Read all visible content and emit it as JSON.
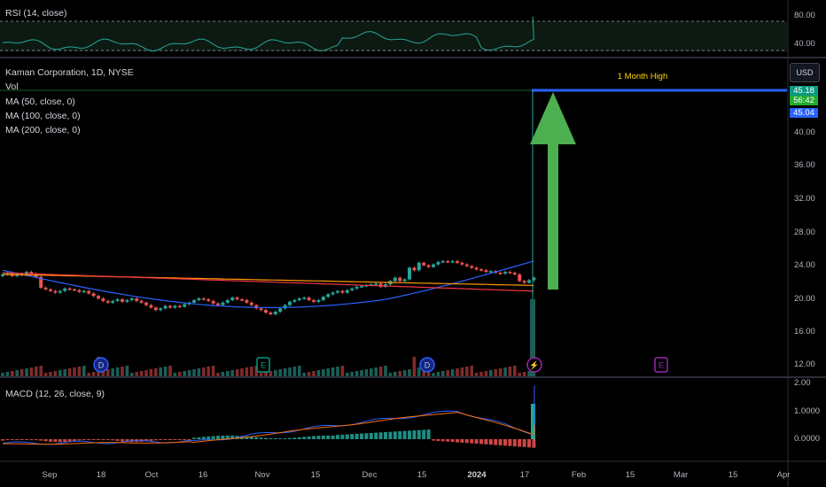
{
  "panes": {
    "rsi": {
      "label": "RSI (14, close)",
      "levels": [
        "80.00",
        "40.00"
      ]
    },
    "price": {
      "title": "Kaman Corporation, 1D, NYSE",
      "indicators": [
        "Vol",
        "MA (50, close, 0)",
        "MA (100, close, 0)",
        "MA (200, close, 0)"
      ],
      "currency": "USD",
      "y_ticks": [
        "40.00",
        "36.00",
        "32.00",
        "28.00",
        "24.00",
        "20.00",
        "16.00",
        "12.00"
      ],
      "price_tags": [
        {
          "text": "45.18",
          "color": "#089981"
        },
        {
          "text": "56:42",
          "color": "#089981"
        },
        {
          "text": "45.04",
          "color": "#2962ff"
        }
      ],
      "annotation": "1 Month High"
    },
    "macd": {
      "label": "MACD (12, 26, close, 9)",
      "y_ticks": [
        "2.00",
        "1.0000",
        "0.0000"
      ]
    }
  },
  "x_axis": {
    "labels": [
      {
        "text": "Sep",
        "bold": false
      },
      {
        "text": "18",
        "bold": false
      },
      {
        "text": "Oct",
        "bold": false
      },
      {
        "text": "16",
        "bold": false
      },
      {
        "text": "Nov",
        "bold": false
      },
      {
        "text": "15",
        "bold": false
      },
      {
        "text": "Dec",
        "bold": false
      },
      {
        "text": "15",
        "bold": false
      },
      {
        "text": "2024",
        "bold": true
      },
      {
        "text": "17",
        "bold": false
      },
      {
        "text": "Feb",
        "bold": false
      },
      {
        "text": "15",
        "bold": false
      },
      {
        "text": "Mar",
        "bold": false
      },
      {
        "text": "15",
        "bold": false
      },
      {
        "text": "Apr",
        "bold": false
      }
    ]
  },
  "events": [
    {
      "symbol": "D",
      "type": "dividend",
      "color": "#2962ff"
    },
    {
      "symbol": "E",
      "type": "earnings",
      "color": "#089981"
    },
    {
      "symbol": "D",
      "type": "dividend",
      "color": "#2962ff"
    },
    {
      "symbol": "⚡",
      "type": "news",
      "color": "#9c27b0"
    },
    {
      "symbol": "E",
      "type": "earnings",
      "color": "#9c27b0"
    }
  ],
  "colors": {
    "up": "#26a69a",
    "down": "#ef5350",
    "arrow": "#4caf50",
    "high_line": "#2962ff",
    "ma50": "#2962ff",
    "ma100": "#ff9800",
    "ma200": "#f23645"
  },
  "chart_data": {
    "type": "candlestick",
    "title": "Kaman Corporation, 1D, NYSE",
    "x_range": [
      "2023-08-28",
      "2024-04-01"
    ],
    "price_ylim": [
      11,
      46
    ],
    "price_close": [
      23.0,
      23.2,
      22.8,
      23.1,
      22.9,
      23.3,
      23.1,
      22.7,
      21.4,
      21.2,
      21.0,
      20.8,
      21.0,
      21.3,
      21.2,
      21.1,
      20.9,
      21.0,
      20.7,
      20.4,
      20.1,
      19.8,
      19.6,
      19.8,
      20.0,
      19.7,
      19.9,
      20.1,
      19.8,
      19.6,
      19.3,
      19.0,
      18.7,
      18.9,
      19.2,
      19.0,
      19.2,
      19.1,
      19.4,
      19.6,
      19.9,
      20.1,
      20.0,
      19.8,
      19.5,
      19.3,
      19.6,
      19.9,
      20.2,
      20.0,
      19.9,
      19.6,
      19.3,
      18.9,
      18.7,
      18.4,
      18.2,
      18.5,
      18.9,
      19.3,
      19.7,
      19.9,
      20.1,
      20.2,
      19.9,
      19.7,
      19.9,
      20.3,
      20.6,
      20.8,
      21.0,
      20.8,
      21.1,
      21.3,
      21.5,
      21.6,
      21.7,
      21.8,
      21.9,
      21.5,
      21.8,
      22.2,
      22.6,
      22.2,
      22.4,
      23.8,
      23.5,
      24.4,
      24.1,
      23.9,
      24.2,
      24.5,
      24.6,
      24.5,
      24.6,
      24.4,
      24.2,
      24.0,
      23.8,
      23.6,
      23.5,
      23.3,
      23.4,
      23.2,
      23.1,
      23.3,
      23.2,
      23.0,
      22.2,
      22.0,
      22.3,
      22.6
    ],
    "spike": {
      "high": 45.18,
      "last": 45.04
    },
    "rsi_ylim": [
      30,
      95
    ],
    "macd_ylim": [
      -0.7,
      2.2
    ]
  }
}
